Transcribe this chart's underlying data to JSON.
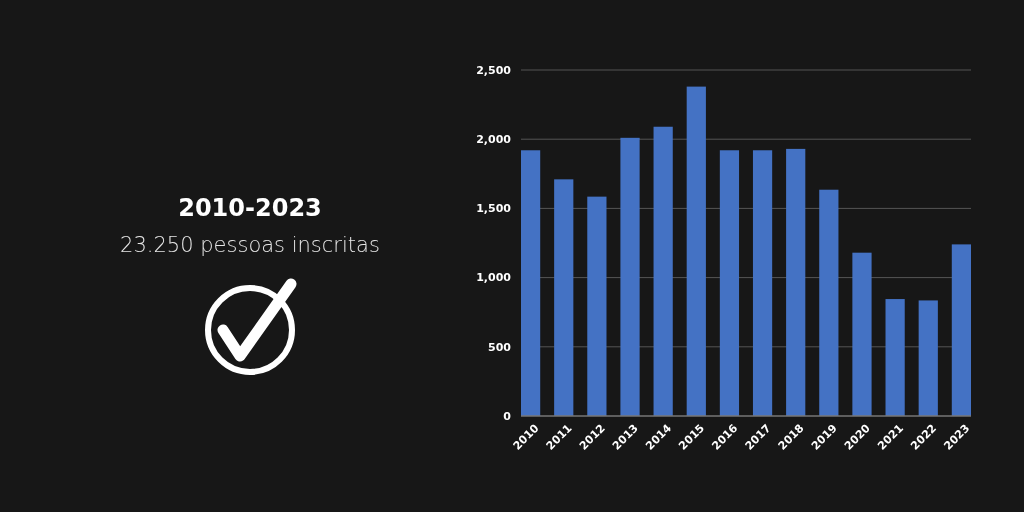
{
  "chart_data": {
    "type": "bar",
    "title": "2010-2023",
    "subtitle": "23.250 pessoas inscritas",
    "categories": [
      "2010",
      "2011",
      "2012",
      "2013",
      "2014",
      "2015",
      "2016",
      "2017",
      "2018",
      "2019",
      "2020",
      "2021",
      "2022",
      "2023"
    ],
    "values": [
      1920,
      1710,
      1585,
      2010,
      2090,
      2380,
      1920,
      1920,
      1930,
      1635,
      1180,
      845,
      835,
      1240
    ],
    "color": "#4472c4",
    "ylim": [
      0,
      2500
    ],
    "yticks": [
      0,
      500,
      {
        "value": 1000,
        "label": "1,000"
      },
      {
        "value": 1500,
        "label": "1,500"
      },
      {
        "value": 2000,
        "label": "2,000"
      },
      {
        "value": 2500,
        "label": "2,500"
      }
    ],
    "grid": "y"
  }
}
